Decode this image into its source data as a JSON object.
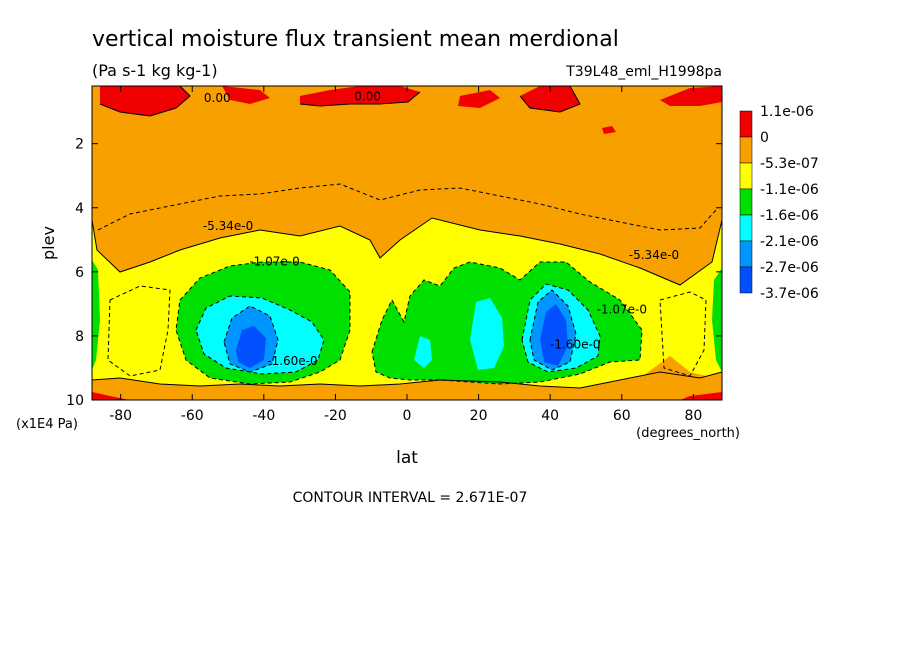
{
  "chart_data": {
    "type": "heatmap",
    "title": "vertical moisture flux transient mean merdional",
    "subtitle": "(Pa s-1 kg kg-1)",
    "run_label": "T39L48_eml_H1998pa",
    "xlabel": "lat",
    "x_units": "(degrees_north)",
    "ylabel": "plev",
    "y_units": "(x1E4 Pa)",
    "xlim": [
      -88,
      88
    ],
    "ylim": [
      10,
      0.2
    ],
    "x_ticks": [
      "-80",
      "-60",
      "-40",
      "-20",
      "0",
      "20",
      "40",
      "60",
      "80"
    ],
    "x_tick_values": [
      -80,
      -60,
      -40,
      -20,
      0,
      20,
      40,
      60,
      80
    ],
    "y_ticks": [
      "2",
      "4",
      "6",
      "8",
      "10"
    ],
    "y_tick_values": [
      2,
      4,
      6,
      8,
      10
    ],
    "legend": {
      "placement": "right",
      "labels": [
        "1.1e-06",
        "0",
        "-5.3e-07",
        "-1.1e-06",
        "-1.6e-06",
        "-2.1e-06",
        "-2.7e-06",
        "-3.7e-06"
      ],
      "colors": [
        "#f00000",
        "#f8a000",
        "#ffff00",
        "#00e000",
        "#00ffff",
        "#0096ff",
        "#0050ff"
      ]
    },
    "contour_labels": [
      {
        "text": "0.00",
        "lat": -53,
        "plev": 0.7
      },
      {
        "text": "0.00",
        "lat": -11,
        "plev": 0.65
      },
      {
        "text": "-5.34e-0",
        "lat": -50,
        "plev": 4.7
      },
      {
        "text": "-1.07e-0",
        "lat": -37,
        "plev": 5.8
      },
      {
        "text": "-1.60e-0",
        "lat": -32,
        "plev": 8.9
      },
      {
        "text": "-5.34e-0",
        "lat": 69,
        "plev": 5.6
      },
      {
        "text": "-1.07e-0",
        "lat": 60,
        "plev": 7.3
      },
      {
        "text": "-1.60e-0",
        "lat": 47,
        "plev": 8.4
      }
    ],
    "footer": "CONTOUR INTERVAL = 2.671E-07"
  }
}
